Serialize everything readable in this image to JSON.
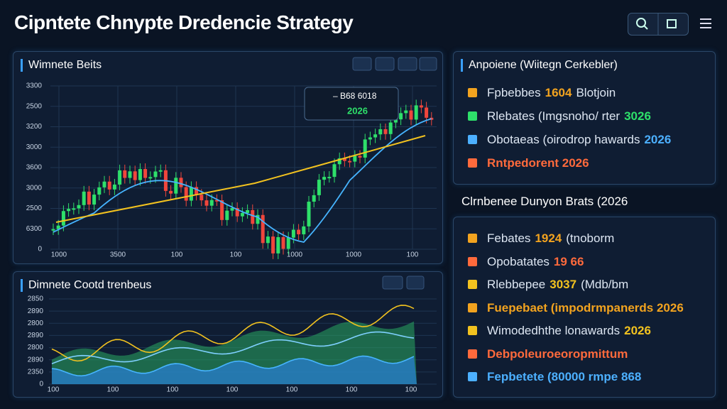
{
  "header": {
    "title": "Cipntete Chnypte Dredencie Strategy"
  },
  "price_panel": {
    "title": "Wimnete Beits",
    "y_labels": [
      "3300",
      "2500",
      "3200",
      "3000",
      "3600",
      "3000",
      "2500",
      "6300",
      "0"
    ],
    "x_labels": [
      "1000",
      "3500",
      "100",
      "100",
      "1000",
      "1000",
      "100"
    ],
    "tooltip": {
      "line1": "– B68 6018",
      "line2": "2026"
    }
  },
  "trend_panel": {
    "title": "Dimnete Cootd trenbeus",
    "y_labels": [
      "2850",
      "2890",
      "2800",
      "2890",
      "2800",
      "2890",
      "2350",
      "0"
    ],
    "x_labels": [
      "100",
      "100",
      "100",
      "100",
      "100",
      "100",
      "100"
    ]
  },
  "overview": {
    "title": "Anpoiene (Wiitegn Cerkebler)",
    "items": [
      {
        "label": "Fpbebbes",
        "highlight": "1604",
        "suffix": "Blotjoin"
      },
      {
        "label": "Rlebates (Imgsnoho/ rter",
        "highlight": "3026",
        "suffix": ""
      },
      {
        "label": "Obotaeas (oirodrop hawards",
        "highlight": "2026",
        "suffix": ""
      },
      {
        "label": "",
        "highlight": "Rntpedorent 2026",
        "suffix": ""
      }
    ]
  },
  "section_heading": "Clrnbenee Dunyon Brats (2026",
  "details": {
    "items": [
      {
        "label": "Febates",
        "highlight": "1924",
        "suffix": "(tnoborm"
      },
      {
        "label": "Opobatates",
        "highlight": "19 66",
        "suffix": ""
      },
      {
        "label": "Rlebbepee",
        "highlight": "3037",
        "suffix": "(Mdb/bm"
      },
      {
        "label": "",
        "highlight": "Fuepebaet (impodrmpanerds 2026",
        "suffix": ""
      },
      {
        "label": "Wimodedhthe lonawards",
        "highlight": "2026",
        "suffix": ""
      },
      {
        "label": "",
        "highlight": "Debpoleuroeoropmittum",
        "suffix": ""
      },
      {
        "label": "",
        "highlight": "Fepbetete (80000 rmpe 868",
        "suffix": ""
      }
    ]
  }
}
